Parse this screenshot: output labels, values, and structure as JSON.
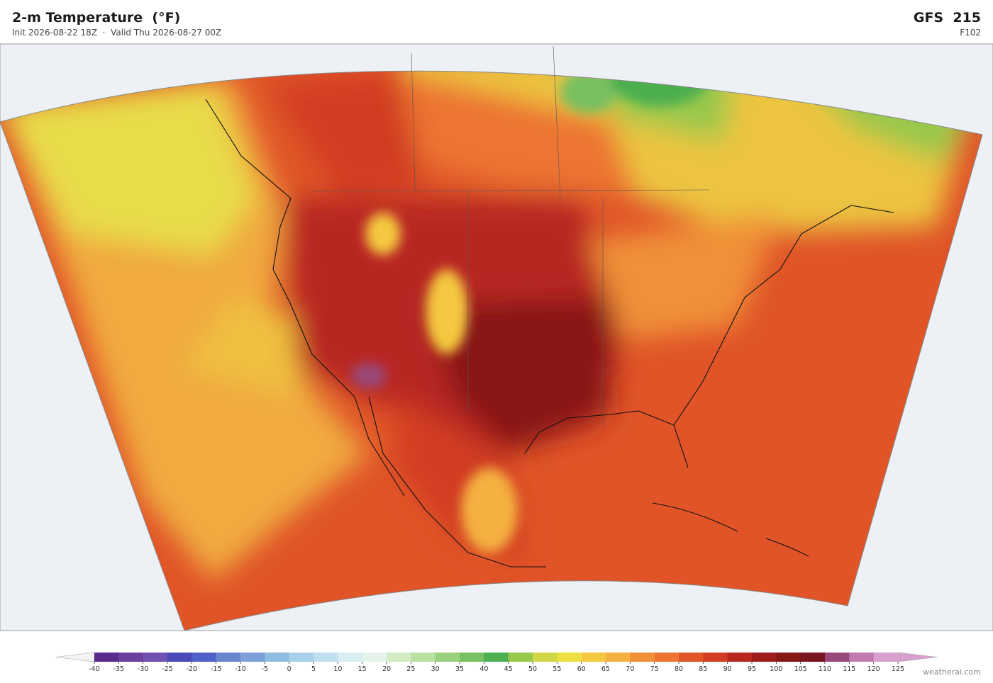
{
  "header": {
    "title": "2-m Temperature  (°F)",
    "subtitle": "Init 2026-08-22 18Z  ·  Valid Thu 2026-08-27 00Z",
    "model": "GFS  215",
    "forecast_hour": "F102"
  },
  "colorbar": {
    "ticks": [
      -40,
      -35,
      -30,
      -25,
      -20,
      -15,
      -10,
      -5,
      0,
      5,
      10,
      15,
      20,
      25,
      30,
      35,
      40,
      45,
      50,
      55,
      60,
      65,
      70,
      75,
      80,
      85,
      90,
      95,
      100,
      105,
      110,
      115,
      120,
      125
    ],
    "colors": [
      "#5b2a8e",
      "#6b3fa0",
      "#7050b0",
      "#4a4ab8",
      "#5062c8",
      "#6b86d0",
      "#7ea0d8",
      "#8fbce0",
      "#a8d0e8",
      "#c0e0ef",
      "#d8eef2",
      "#e4f4ea",
      "#d4ecc4",
      "#b8e0a0",
      "#98d07c",
      "#78c060",
      "#4caf50",
      "#98c84c",
      "#d0d848",
      "#ece040",
      "#f4c840",
      "#f4b040",
      "#f09038",
      "#ec7430",
      "#e05428",
      "#d23c24",
      "#b82820",
      "#9e1c1c",
      "#881818",
      "#7a1420",
      "#9a4a7a",
      "#c07ab0",
      "#d8a0cc"
    ],
    "under_color": "#f4f4f4",
    "over_color": "#d8a0cc"
  },
  "footer": {
    "credit": "weatherai.com"
  }
}
